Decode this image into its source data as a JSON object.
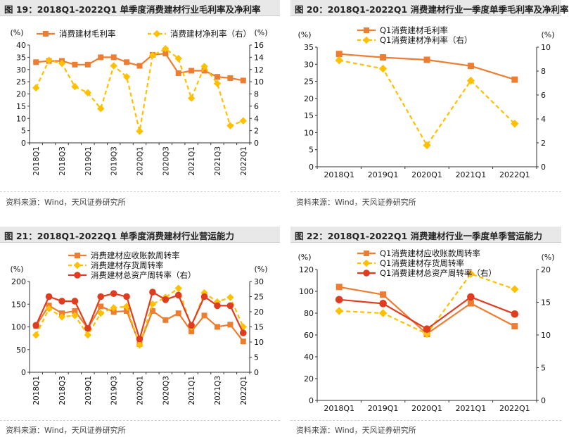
{
  "panels": [
    {
      "title": "图 19：2018Q1-2022Q1 单季度消费建材行业毛利率及净利率",
      "source": "资料来源：Wind，天风证券研究所"
    },
    {
      "title": "图 20：2018Q1-2022Q1 消费建材行业一季度单季毛利率及净利率",
      "source": "资料来源：Wind，天风证券研究所"
    },
    {
      "title": "图 21：2018Q1-2022Q1 单季度消费建材行业营运能力",
      "source": "资料来源：Wind，天风证券研究所"
    },
    {
      "title": "图 22：2018Q1-2022Q1 消费建材行业一季度单季营运能力",
      "source": "资料来源：Wind，天风证券研究所"
    }
  ],
  "chart_data": [
    {
      "type": "line",
      "left_unit": "(%)",
      "right_unit": "(%)",
      "categories": [
        "2018Q1",
        "2018Q2",
        "2018Q3",
        "2018Q4",
        "2019Q1",
        "2019Q2",
        "2019Q3",
        "2019Q4",
        "2020Q1",
        "2020Q2",
        "2020Q3",
        "2020Q4",
        "2021Q1",
        "2021Q2",
        "2021Q3",
        "2021Q4",
        "2022Q1"
      ],
      "tick_labels": [
        "2018Q1",
        "2018Q3",
        "2019Q1",
        "2019Q3",
        "2020Q1",
        "2020Q3",
        "2021Q1",
        "2021Q3",
        "2022Q1"
      ],
      "ylim_left": [
        0,
        40
      ],
      "yticks_left": [
        0,
        5,
        10,
        15,
        20,
        25,
        30,
        35,
        40
      ],
      "ylim_right": [
        0,
        16
      ],
      "yticks_right": [
        0,
        2,
        4,
        6,
        8,
        10,
        12,
        14,
        16
      ],
      "series": [
        {
          "name": "消费建材毛利率",
          "axis": "left",
          "color": "#ED7D31",
          "style": "solid",
          "marker": "square",
          "values": [
            33,
            33.5,
            33.5,
            32,
            32,
            35,
            35,
            33,
            31.5,
            36,
            36.5,
            28.5,
            29.5,
            29.5,
            27,
            26.5,
            25.5
          ]
        },
        {
          "name": "消费建材净利率（右）",
          "axis": "right",
          "color": "#FFC000",
          "style": "dashed",
          "marker": "diamond",
          "values": [
            9,
            13.5,
            13,
            9.2,
            8.2,
            5.6,
            12.6,
            10.8,
            1.9,
            14.3,
            15.4,
            13.8,
            7.3,
            12.5,
            9.7,
            2.8,
            3.6
          ]
        }
      ]
    },
    {
      "type": "line",
      "left_unit": "(%)",
      "right_unit": "(%)",
      "categories": [
        "2018Q1",
        "2019Q1",
        "2020Q1",
        "2021Q1",
        "2022Q1"
      ],
      "tick_labels": [
        "2018Q1",
        "2019Q1",
        "2020Q1",
        "2021Q1",
        "2022Q1"
      ],
      "ylim_left": [
        0,
        35
      ],
      "yticks_left": [
        0,
        5,
        10,
        15,
        20,
        25,
        30,
        35
      ],
      "ylim_right": [
        0,
        10
      ],
      "yticks_right": [
        0,
        2,
        4,
        6,
        8,
        10
      ],
      "series": [
        {
          "name": "Q1消费建材毛利率",
          "axis": "left",
          "color": "#ED7D31",
          "style": "solid",
          "marker": "square",
          "values": [
            33,
            32,
            31.3,
            29.5,
            25.5
          ]
        },
        {
          "name": "Q1消费建材净利率（右）",
          "axis": "right",
          "color": "#FFC000",
          "style": "dashed",
          "marker": "diamond",
          "values": [
            8.9,
            8.2,
            1.8,
            7.2,
            3.6
          ]
        }
      ]
    },
    {
      "type": "line",
      "left_unit": "(%)",
      "right_unit": "(%)",
      "categories": [
        "2018Q1",
        "2018Q2",
        "2018Q3",
        "2018Q4",
        "2019Q1",
        "2019Q2",
        "2019Q3",
        "2019Q4",
        "2020Q1",
        "2020Q2",
        "2020Q3",
        "2020Q4",
        "2021Q1",
        "2021Q2",
        "2021Q3",
        "2021Q4",
        "2022Q1"
      ],
      "tick_labels": [
        "2018Q1",
        "2018Q3",
        "2019Q1",
        "2019Q3",
        "2020Q1",
        "2020Q3",
        "2021Q1",
        "2021Q3",
        "2022Q1"
      ],
      "ylim_left": [
        0,
        200
      ],
      "yticks_left": [
        0,
        50,
        100,
        150,
        200
      ],
      "ylim_right": [
        0,
        30
      ],
      "yticks_right": [
        0,
        5,
        10,
        15,
        20,
        25,
        30
      ],
      "series": [
        {
          "name": "消费建材应收账款周转率",
          "axis": "left",
          "color": "#ED7D31",
          "style": "solid",
          "marker": "square",
          "values": [
            102,
            147,
            130,
            135,
            97,
            145,
            133,
            135,
            62,
            135,
            115,
            130,
            90,
            125,
            100,
            105,
            68
          ]
        },
        {
          "name": "消费建材存货周转率",
          "axis": "left",
          "color": "#FFC000",
          "style": "dashed",
          "marker": "diamond",
          "values": [
            82,
            140,
            122,
            125,
            82,
            130,
            142,
            145,
            60,
            150,
            165,
            185,
            100,
            175,
            155,
            165,
            100
          ]
        },
        {
          "name": "消费建材总资产周转率（右）",
          "axis": "right",
          "color": "#E03C1F",
          "style": "solid",
          "marker": "circle",
          "values": [
            15.5,
            25,
            23.5,
            23.5,
            14.5,
            25,
            26,
            25,
            11,
            26.5,
            24,
            25.5,
            15.5,
            25,
            22,
            22,
            13
          ]
        }
      ]
    },
    {
      "type": "line",
      "left_unit": "(%)",
      "right_unit": "(%)",
      "categories": [
        "2018Q1",
        "2019Q1",
        "2020Q1",
        "2021Q1",
        "2022Q1"
      ],
      "tick_labels": [
        "2018Q1",
        "2019Q1",
        "2020Q1",
        "2021Q1",
        "2022Q1"
      ],
      "ylim_left": [
        0,
        120
      ],
      "yticks_left": [
        0,
        20,
        40,
        60,
        80,
        100,
        120
      ],
      "ylim_right": [
        0,
        20
      ],
      "yticks_right": [
        0,
        5,
        10,
        15,
        20
      ],
      "series": [
        {
          "name": "Q1消费建材应收账款周转率",
          "axis": "left",
          "color": "#ED7D31",
          "style": "solid",
          "marker": "square",
          "values": [
            104,
            97,
            61,
            89,
            68
          ]
        },
        {
          "name": "Q1消费建材存货周转率",
          "axis": "left",
          "color": "#FFC000",
          "style": "dashed",
          "marker": "diamond",
          "values": [
            82,
            80,
            61,
            116,
            102
          ]
        },
        {
          "name": "Q1消费建材总资产周转率（右）",
          "axis": "right",
          "color": "#E03C1F",
          "style": "solid",
          "marker": "circle",
          "values": [
            15.4,
            14.8,
            10.9,
            15.8,
            13.2
          ]
        }
      ]
    }
  ]
}
